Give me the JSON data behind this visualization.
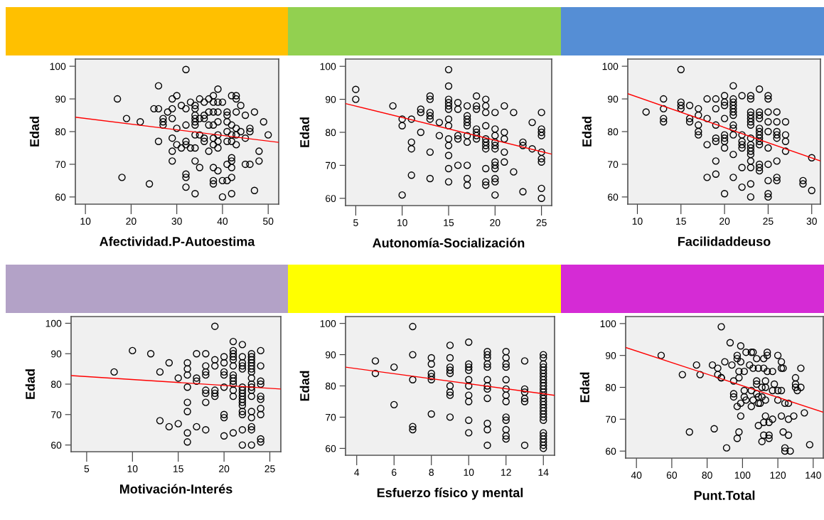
{
  "chart_data": [
    {
      "type": "scatter",
      "xlabel": "Afectividad.P-Autoestima",
      "ylabel": "Edad",
      "xlim": [
        7.8,
        52.3
      ],
      "xticks": [
        10,
        20,
        30,
        40,
        50
      ],
      "ylim": [
        57.8,
        102.2
      ],
      "yticks": [
        60,
        70,
        80,
        90,
        100
      ],
      "grid": false,
      "series": [
        {
          "marker": "circle",
          "color": "#000000",
          "x": [
            17,
            18,
            19,
            22,
            24,
            26,
            25,
            26,
            26,
            27,
            27,
            27,
            28,
            29,
            30,
            29,
            29,
            29,
            29,
            29,
            30,
            30,
            31,
            31,
            32,
            32,
            32,
            32,
            32,
            32,
            32,
            32,
            33,
            33,
            34,
            34,
            34,
            34,
            34,
            34,
            34,
            34,
            34,
            34,
            35,
            35,
            35,
            35,
            36,
            36,
            36,
            36,
            36,
            37,
            37,
            37,
            37,
            38,
            38,
            38,
            38,
            38,
            38,
            38,
            38,
            38,
            39,
            39,
            39,
            39,
            39,
            39,
            39,
            39,
            40,
            40,
            40,
            41,
            41,
            41,
            41,
            41,
            41,
            41,
            42,
            42,
            42,
            42,
            42,
            42,
            42,
            42,
            42,
            43,
            43,
            43,
            43,
            43,
            43,
            44,
            44,
            45,
            45,
            45,
            46,
            46,
            46,
            47,
            47,
            48,
            48,
            49,
            50
          ],
          "values": [
            90,
            66,
            84,
            83,
            64,
            94,
            87,
            87,
            77,
            84,
            83,
            82,
            86,
            90,
            91,
            87,
            84,
            78,
            74,
            71,
            81,
            76,
            88,
            75,
            99,
            87,
            82,
            77,
            76,
            67,
            66,
            63,
            89,
            75,
            88,
            87,
            85,
            84,
            83,
            82,
            79,
            75,
            71,
            61,
            90,
            84,
            79,
            69,
            89,
            85,
            84,
            78,
            77,
            90,
            86,
            82,
            74,
            91,
            89,
            86,
            82,
            78,
            76,
            69,
            65,
            64,
            93,
            89,
            86,
            83,
            79,
            77,
            75,
            68,
            89,
            65,
            60,
            86,
            85,
            83,
            80,
            77,
            70,
            65,
            91,
            82,
            79,
            77,
            72,
            71,
            69,
            66,
            61,
            91,
            90,
            86,
            81,
            79,
            76,
            88,
            80,
            85,
            78,
            70,
            81,
            80,
            70,
            86,
            62,
            74,
            71,
            83,
            79
          ]
        },
        {
          "type": "line",
          "color": "#ff0000",
          "x": [
            7.8,
            52.3
          ],
          "values": [
            84.4,
            76.7
          ]
        }
      ]
    },
    {
      "type": "scatter",
      "xlabel": "Autonomía-Socialización",
      "ylabel": "Edad",
      "xlim": [
        3.9,
        26.1
      ],
      "xticks": [
        5,
        10,
        15,
        20,
        25
      ],
      "ylim": [
        57.8,
        102.2
      ],
      "yticks": [
        60,
        70,
        80,
        90,
        100
      ],
      "grid": false,
      "series": [
        {
          "marker": "circle",
          "color": "#000000",
          "x": [
            5,
            5,
            9,
            10,
            10,
            10,
            11,
            11,
            11,
            11,
            12,
            12,
            12,
            13,
            13,
            13,
            13,
            13,
            13,
            13,
            14,
            14,
            15,
            15,
            15,
            15,
            15,
            15,
            15,
            15,
            15,
            15,
            15,
            15,
            15,
            16,
            16,
            16,
            16,
            16,
            17,
            17,
            17,
            17,
            17,
            17,
            17,
            17,
            17,
            17,
            18,
            18,
            18,
            18,
            18,
            18,
            18,
            19,
            19,
            19,
            19,
            19,
            19,
            19,
            19,
            19,
            19,
            19,
            20,
            20,
            20,
            20,
            20,
            20,
            20,
            20,
            20,
            20,
            20,
            20,
            21,
            21,
            21,
            21,
            21,
            22,
            22,
            23,
            23,
            23,
            24,
            24,
            25,
            25,
            25,
            25,
            25,
            25,
            25,
            25,
            25
          ],
          "values": [
            93,
            90,
            88,
            84,
            82,
            61,
            84,
            77,
            75,
            67,
            87,
            86,
            80,
            91,
            90,
            86,
            85,
            84,
            74,
            66,
            83,
            79,
            99,
            94,
            90,
            89,
            88,
            87,
            84,
            82,
            78,
            76,
            73,
            69,
            65,
            89,
            87,
            79,
            78,
            70,
            88,
            85,
            84,
            83,
            82,
            79,
            77,
            70,
            66,
            64,
            91,
            88,
            87,
            81,
            80,
            79,
            78,
            90,
            88,
            86,
            82,
            78,
            77,
            76,
            75,
            69,
            65,
            64,
            86,
            81,
            79,
            77,
            76,
            75,
            71,
            70,
            69,
            66,
            65,
            61,
            88,
            80,
            78,
            74,
            71,
            86,
            68,
            77,
            76,
            62,
            83,
            75,
            86,
            81,
            80,
            79,
            74,
            72,
            71,
            63,
            60
          ]
        },
        {
          "type": "line",
          "color": "#ff0000",
          "x": [
            3.9,
            26.1
          ],
          "values": [
            88.7,
            73.4
          ]
        }
      ]
    },
    {
      "type": "scatter",
      "xlabel": "Facilidaddeuso",
      "ylabel": "Edad",
      "xlim": [
        8.9,
        31.0
      ],
      "xticks": [
        10,
        15,
        20,
        25,
        30
      ],
      "ylim": [
        57.8,
        102.2
      ],
      "yticks": [
        60,
        70,
        80,
        90,
        100
      ],
      "grid": false,
      "series": [
        {
          "marker": "circle",
          "color": "#000000",
          "x": [
            11,
            13,
            13,
            13,
            13,
            15,
            15,
            15,
            15,
            16,
            16,
            16,
            17,
            17,
            17,
            17,
            17,
            18,
            18,
            18,
            18,
            19,
            19,
            19,
            19,
            19,
            19,
            19,
            20,
            20,
            20,
            20,
            20,
            20,
            20,
            20,
            20,
            21,
            21,
            21,
            21,
            21,
            21,
            21,
            21,
            21,
            21,
            21,
            21,
            22,
            22,
            22,
            22,
            22,
            22,
            22,
            23,
            23,
            23,
            23,
            23,
            23,
            23,
            23,
            23,
            23,
            23,
            23,
            23,
            23,
            23,
            23,
            24,
            24,
            24,
            24,
            24,
            24,
            24,
            24,
            24,
            24,
            24,
            24,
            24,
            25,
            25,
            25,
            25,
            25,
            25,
            25,
            25,
            25,
            25,
            26,
            26,
            26,
            26,
            26,
            26,
            26,
            26,
            27,
            27,
            27,
            27,
            29,
            29,
            30,
            30
          ],
          "values": [
            86,
            90,
            87,
            84,
            83,
            99,
            89,
            88,
            87,
            88,
            84,
            83,
            87,
            85,
            82,
            80,
            79,
            90,
            84,
            76,
            66,
            90,
            87,
            82,
            78,
            77,
            71,
            67,
            91,
            89,
            88,
            84,
            79,
            78,
            77,
            75,
            61,
            94,
            90,
            89,
            88,
            87,
            86,
            85,
            82,
            81,
            79,
            73,
            66,
            91,
            79,
            77,
            76,
            75,
            69,
            63,
            91,
            90,
            86,
            85,
            84,
            83,
            82,
            78,
            76,
            75,
            74,
            73,
            71,
            69,
            64,
            60,
            93,
            86,
            85,
            84,
            81,
            80,
            79,
            78,
            77,
            76,
            70,
            69,
            68,
            91,
            90,
            86,
            83,
            80,
            75,
            70,
            65,
            61,
            60,
            86,
            83,
            80,
            79,
            78,
            71,
            66,
            65,
            83,
            79,
            77,
            74,
            65,
            64,
            72,
            62
          ]
        },
        {
          "type": "line",
          "color": "#ff0000",
          "x": [
            8.9,
            31.0
          ],
          "values": [
            91.6,
            71.0
          ]
        }
      ]
    },
    {
      "type": "scatter",
      "xlabel": "Motivación-Interés",
      "ylabel": "Edad",
      "xlim": [
        3.3,
        26.2
      ],
      "xticks": [
        5,
        10,
        15,
        20,
        25
      ],
      "ylim": [
        57.8,
        102.2
      ],
      "yticks": [
        60,
        70,
        80,
        90,
        100
      ],
      "grid": false,
      "series": [
        {
          "marker": "circle",
          "color": "#000000",
          "x": [
            8,
            10,
            12,
            13,
            13,
            14,
            14,
            15,
            15,
            16,
            16,
            16,
            16,
            16,
            16,
            16,
            16,
            17,
            17,
            17,
            17,
            18,
            18,
            18,
            18,
            18,
            18,
            18,
            18,
            19,
            19,
            19,
            19,
            19,
            19,
            20,
            20,
            20,
            20,
            20,
            20,
            20,
            20,
            21,
            21,
            21,
            21,
            21,
            21,
            21,
            21,
            21,
            21,
            21,
            21,
            21,
            22,
            22,
            22,
            22,
            22,
            22,
            22,
            22,
            22,
            22,
            22,
            22,
            22,
            22,
            22,
            22,
            23,
            23,
            23,
            23,
            23,
            23,
            23,
            23,
            23,
            23,
            23,
            23,
            23,
            23,
            23,
            23,
            23,
            24,
            24,
            24,
            24,
            24,
            24,
            24,
            24,
            24,
            24
          ],
          "values": [
            84,
            91,
            90,
            84,
            68,
            87,
            66,
            82,
            67,
            87,
            85,
            83,
            79,
            74,
            71,
            64,
            61,
            90,
            82,
            81,
            66,
            90,
            86,
            84,
            83,
            78,
            77,
            74,
            65,
            99,
            88,
            86,
            78,
            77,
            76,
            89,
            87,
            84,
            83,
            79,
            70,
            69,
            63,
            94,
            91,
            90,
            89,
            88,
            86,
            83,
            82,
            81,
            80,
            78,
            76,
            64,
            93,
            89,
            87,
            86,
            85,
            79,
            78,
            77,
            76,
            75,
            74,
            73,
            71,
            70,
            65,
            60,
            90,
            89,
            88,
            87,
            86,
            85,
            84,
            82,
            80,
            79,
            78,
            76,
            71,
            69,
            66,
            65,
            60,
            91,
            86,
            81,
            80,
            76,
            75,
            72,
            70,
            62,
            61
          ]
        },
        {
          "type": "line",
          "color": "#ff0000",
          "x": [
            3.3,
            26.2
          ],
          "values": [
            82.8,
            78.4
          ]
        }
      ]
    },
    {
      "type": "scatter",
      "xlabel": "Esfuerzo físico y mental",
      "ylabel": "Edad",
      "xlim": [
        3.4,
        14.6
      ],
      "xticks": [
        4,
        6,
        8,
        10,
        12,
        14
      ],
      "ylim": [
        57.8,
        102.2
      ],
      "yticks": [
        60,
        70,
        80,
        90,
        100
      ],
      "grid": false,
      "series": [
        {
          "marker": "circle",
          "color": "#000000",
          "x": [
            5,
            5,
            6,
            6,
            7,
            7,
            7,
            7,
            7,
            8,
            8,
            8,
            8,
            8,
            8,
            9,
            9,
            9,
            9,
            9,
            9,
            9,
            9,
            9,
            10,
            10,
            10,
            10,
            10,
            10,
            10,
            10,
            10,
            10,
            11,
            11,
            11,
            11,
            11,
            11,
            11,
            11,
            11,
            11,
            11,
            11,
            12,
            12,
            12,
            12,
            12,
            12,
            12,
            12,
            12,
            12,
            12,
            12,
            12,
            13,
            13,
            13,
            13,
            13,
            13,
            14,
            14,
            14,
            14,
            14,
            14,
            14,
            14,
            14,
            14,
            14,
            14,
            14,
            14,
            14,
            14,
            14,
            14,
            14,
            14,
            14,
            14,
            14,
            14,
            14,
            14,
            14
          ],
          "values": [
            88,
            84,
            86,
            74,
            99,
            90,
            82,
            67,
            66,
            89,
            87,
            84,
            83,
            82,
            71,
            93,
            89,
            86,
            85,
            84,
            80,
            78,
            77,
            70,
            94,
            87,
            86,
            85,
            82,
            80,
            77,
            75,
            69,
            65,
            91,
            90,
            89,
            87,
            86,
            82,
            80,
            79,
            76,
            68,
            66,
            61,
            91,
            89,
            87,
            86,
            82,
            79,
            77,
            75,
            70,
            69,
            66,
            64,
            63,
            88,
            79,
            78,
            76,
            75,
            61,
            90,
            89,
            87,
            86,
            85,
            84,
            83,
            82,
            81,
            80,
            79,
            78,
            77,
            76,
            75,
            74,
            73,
            72,
            71,
            70,
            69,
            65,
            64,
            63,
            62,
            61,
            60
          ]
        },
        {
          "type": "line",
          "color": "#ff0000",
          "x": [
            3.4,
            14.6
          ],
          "values": [
            86.0,
            77.0
          ]
        }
      ]
    },
    {
      "type": "scatter",
      "xlabel": "Punt.Total",
      "ylabel": "Edad",
      "xlim": [
        33.9,
        145.7
      ],
      "xticks": [
        40,
        60,
        80,
        100,
        120,
        140
      ],
      "ylim": [
        57.8,
        102.2
      ],
      "yticks": [
        60,
        70,
        80,
        90,
        100
      ],
      "grid": false,
      "series": [
        {
          "marker": "circle",
          "color": "#000000",
          "x": [
            54,
            66,
            70,
            74,
            76,
            83,
            84,
            86,
            86,
            88,
            88,
            88,
            90,
            91,
            93,
            94,
            95,
            95,
            95,
            97,
            97,
            97,
            97,
            98,
            98,
            98,
            99,
            99,
            99,
            99,
            101,
            101,
            101,
            102,
            102,
            104,
            105,
            105,
            105,
            106,
            106,
            106,
            108,
            108,
            108,
            108,
            109,
            109,
            109,
            109,
            110,
            111,
            111,
            111,
            112,
            112,
            112,
            112,
            113,
            113,
            113,
            113,
            114,
            114,
            114,
            115,
            115,
            115,
            117,
            117,
            117,
            118,
            120,
            120,
            120,
            122,
            122,
            122,
            122,
            123,
            123,
            124,
            124,
            124,
            126,
            126,
            126,
            127,
            129,
            130,
            130,
            130,
            131,
            133,
            133,
            135,
            138
          ],
          "values": [
            90,
            84,
            66,
            87,
            84,
            87,
            67,
            86,
            84,
            99,
            83,
            83,
            88,
            61,
            94,
            87,
            82,
            78,
            77,
            90,
            89,
            74,
            64,
            85,
            83,
            66,
            93,
            88,
            75,
            71,
            85,
            79,
            77,
            76,
            91,
            87,
            91,
            79,
            74,
            91,
            86,
            76,
            89,
            82,
            81,
            78,
            86,
            77,
            75,
            68,
            75,
            80,
            77,
            63,
            89,
            86,
            69,
            65,
            82,
            80,
            76,
            71,
            90,
            91,
            85,
            69,
            65,
            64,
            79,
            70,
            85,
            81,
            90,
            79,
            76,
            88,
            86,
            79,
            71,
            86,
            66,
            75,
            61,
            60,
            75,
            70,
            65,
            60,
            71,
            83,
            81,
            80,
            79,
            80,
            86,
            72,
            62
          ]
        },
        {
          "type": "line",
          "color": "#ff0000",
          "x": [
            33.9,
            145.7
          ],
          "values": [
            92.5,
            72.2
          ]
        }
      ]
    }
  ]
}
